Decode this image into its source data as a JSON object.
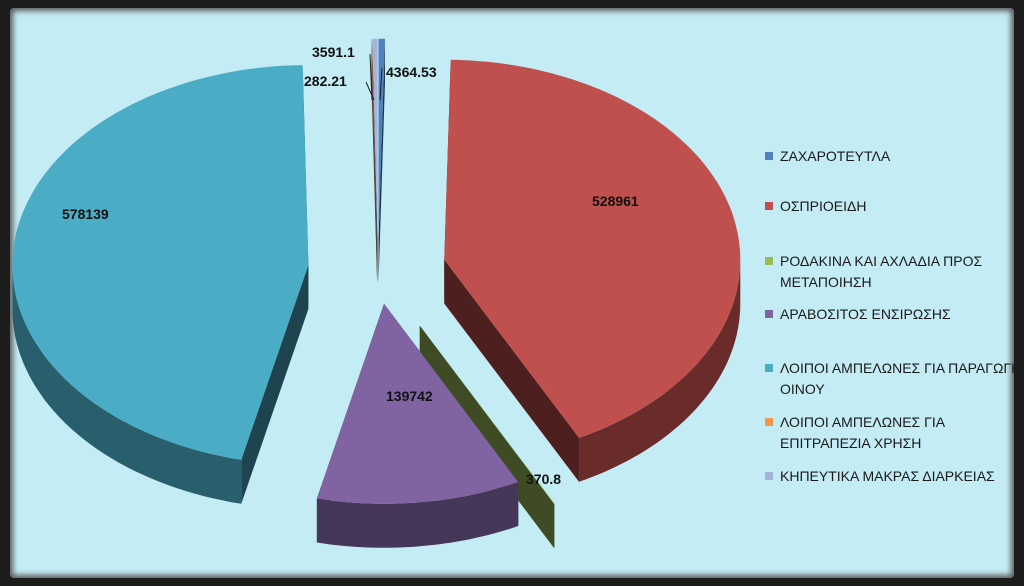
{
  "chart_data": {
    "type": "pie",
    "title": "",
    "exploded": true,
    "three_d": true,
    "legend_position": "right",
    "categories": [
      "ΖΑΧΑΡΟΤΕΥΤΛΑ",
      "ΟΣΠΡΙΟΕΙΔΗ",
      "ΡΟΔΑΚΙΝΑ ΚΑΙ ΑΧΛΑΔΙΑ ΠΡΟΣ ΜΕΤΑΠΟΙΗΣΗ",
      "ΑΡΑΒΟΣΙΤΟΣ ΕΝΣΙΡΩΣΗΣ",
      "ΛΟΙΠΟΙ ΑΜΠΕΛΩΝΕΣ ΓΙΑ ΠΑΡΑΓΩΓΗ ΟΙΝΟΥ",
      "ΛΟΙΠΟΙ ΑΜΠΕΛΩΝΕΣ ΓΙΑ ΕΠΙΤΡΑΠΕΖΙΑ ΧΡΗΣΗ",
      "ΚΗΠΕΥΤΙΚΑ ΜΑΚΡΑΣ ΔΙΑΡΚΕΙΑΣ"
    ],
    "values": [
      4364.53,
      528961,
      370.8,
      139742,
      578139,
      282.21,
      3591.1
    ],
    "value_labels": [
      "4364.53",
      "528961",
      "370.8",
      "139742",
      "578139",
      "282.21",
      "3591.1"
    ],
    "colors": [
      "#4f81bd",
      "#c0504d",
      "#9bbb59",
      "#8064a2",
      "#4bacc6",
      "#f79646",
      "#a5b4d8"
    ]
  }
}
